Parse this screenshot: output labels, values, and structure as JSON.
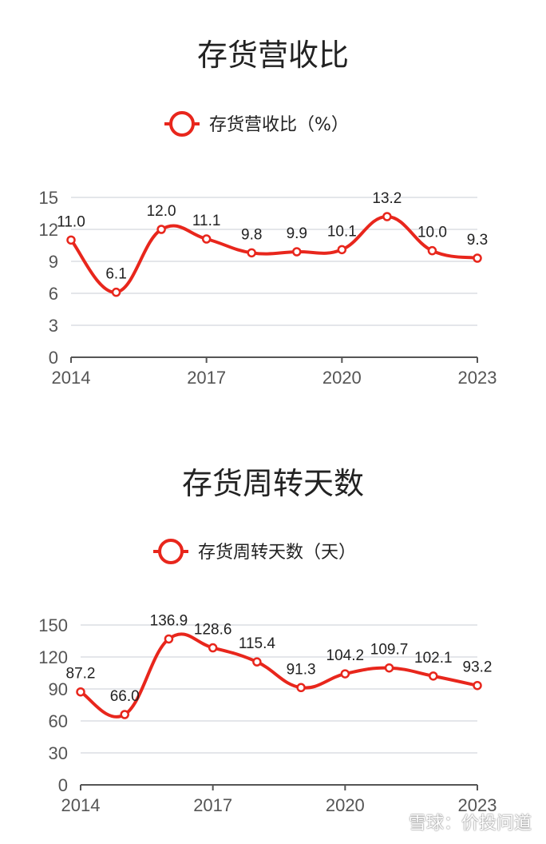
{
  "colors": {
    "series": "#e8261c",
    "axis": "#555555",
    "grid": "#dcdde3",
    "text": "#222222"
  },
  "watermark": "雪球：价投问道",
  "chart_data": [
    {
      "type": "line",
      "title": "存货营收比",
      "legend": [
        "存货营收比（%）"
      ],
      "x": [
        2014,
        2015,
        2016,
        2017,
        2018,
        2019,
        2020,
        2021,
        2022,
        2023
      ],
      "x_tick_labels": [
        "2014",
        "2017",
        "2020",
        "2023"
      ],
      "y_ticks": [
        0,
        3,
        6,
        9,
        12,
        15
      ],
      "ylim": [
        0,
        15
      ],
      "grid": true,
      "legend_position": "top-center",
      "series": [
        {
          "name": "存货营收比（%）",
          "values": [
            11.0,
            6.1,
            12.0,
            11.1,
            9.8,
            9.9,
            10.1,
            13.2,
            10.0,
            9.3
          ],
          "labels": [
            "11.0",
            "6.1",
            "12.0",
            "11.1",
            "9.8",
            "9.9",
            "10.1",
            "13.2",
            "10.0",
            "9.3"
          ]
        }
      ]
    },
    {
      "type": "line",
      "title": "存货周转天数",
      "legend": [
        "存货周转天数（天）"
      ],
      "x": [
        2014,
        2015,
        2016,
        2017,
        2018,
        2019,
        2020,
        2021,
        2022,
        2023
      ],
      "x_tick_labels": [
        "2014",
        "2017",
        "2020",
        "2023"
      ],
      "y_ticks": [
        0,
        30,
        60,
        90,
        120,
        150
      ],
      "ylim": [
        0,
        150
      ],
      "grid": true,
      "legend_position": "top-center",
      "series": [
        {
          "name": "存货周转天数（天）",
          "values": [
            87.2,
            66.0,
            136.9,
            128.6,
            115.4,
            91.3,
            104.2,
            109.7,
            102.1,
            93.2
          ],
          "labels": [
            "87.2",
            "66.0",
            "136.9",
            "128.6",
            "115.4",
            "91.3",
            "104.2",
            "109.7",
            "102.1",
            "93.2"
          ]
        }
      ]
    }
  ]
}
